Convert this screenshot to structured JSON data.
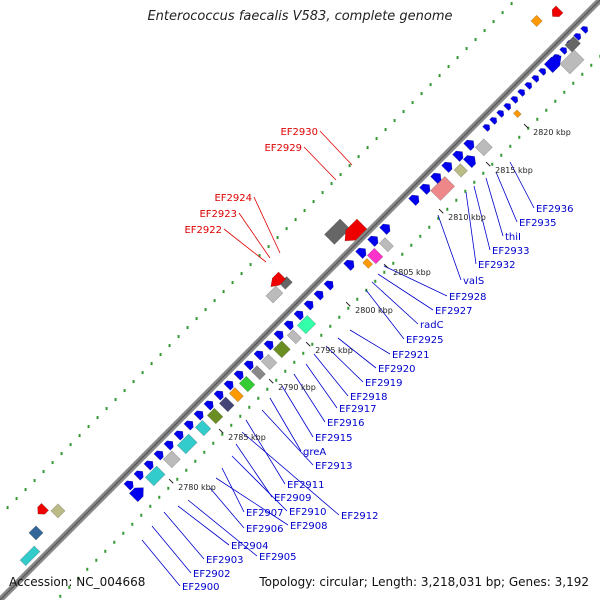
{
  "header": {
    "title": "Enterococcus faecalis V583, complete genome"
  },
  "footer": {
    "accession": "Accession: NC_004668",
    "topology": "Topology: circular; Length: 3,218,031 bp; Genes: 3,192"
  },
  "colors": {
    "forward_gene": "#0000ee",
    "reverse_label": "#dd0000",
    "forward_label": "#0000cc",
    "backbone": "#888888",
    "tick_dots": "#339933"
  },
  "ticks": [
    "2780 kbp",
    "2785 kbp",
    "2790 kbp",
    "2795 kbp",
    "2800 kbp",
    "2805 kbp",
    "2810 kbp",
    "2815 kbp",
    "2820 kbp"
  ],
  "reverse_labels": [
    "EF2930",
    "EF2929",
    "EF2924",
    "EF2923",
    "EF2922"
  ],
  "forward_labels": [
    "EF2936",
    "EF2935",
    "thiI",
    "EF2933",
    "EF2932",
    "valS",
    "EF2928",
    "EF2927",
    "radC",
    "EF2925",
    "EF2921",
    "EF2920",
    "EF2919",
    "EF2918",
    "EF2917",
    "EF2916",
    "EF2915",
    "greA",
    "EF2913",
    "EF2911",
    "EF2912",
    "EF2909",
    "EF2910",
    "EF2907",
    "EF2908",
    "EF2906",
    "EF2905",
    "EF2904",
    "EF2903",
    "EF2902",
    "EF2900"
  ]
}
